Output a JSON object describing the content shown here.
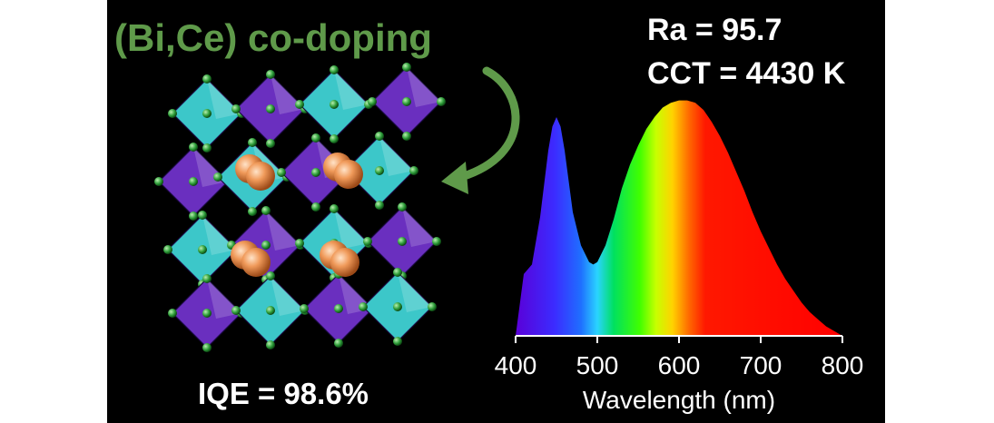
{
  "labels": {
    "title": "(Bi,Ce) co-doping",
    "ra": "Ra = 95.7",
    "cct": "CCT = 4430 K",
    "iqe": "IQE = 98.6%"
  },
  "colors": {
    "title_green": "#5f9a4a",
    "octahedron_teal": "#3cc7c9",
    "octahedron_purple": "#6a2fbf",
    "sphere_orange": "#f09a5a",
    "atom_green": "#2f9e3a",
    "background": "#000000"
  },
  "crystal": {
    "name": "perovskite-crystal-structure"
  },
  "chart_data": {
    "type": "area",
    "title": "",
    "xlabel": "Wavelength (nm)",
    "ylabel": "",
    "xlim": [
      400,
      800
    ],
    "ylim": [
      0,
      1
    ],
    "xticks": [
      "400",
      "500",
      "600",
      "700",
      "800"
    ],
    "series": [
      {
        "name": "emission spectrum",
        "x": [
          400,
          410,
          420,
          430,
          440,
          445,
          450,
          455,
          460,
          470,
          480,
          490,
          495,
          500,
          510,
          520,
          530,
          540,
          550,
          560,
          570,
          580,
          590,
          600,
          610,
          620,
          630,
          640,
          650,
          660,
          670,
          680,
          690,
          700,
          710,
          720,
          730,
          740,
          750,
          760,
          770,
          780,
          790,
          800
        ],
        "values": [
          0.0,
          0.26,
          0.3,
          0.5,
          0.78,
          0.88,
          0.92,
          0.88,
          0.78,
          0.52,
          0.38,
          0.31,
          0.3,
          0.31,
          0.38,
          0.49,
          0.62,
          0.72,
          0.8,
          0.87,
          0.92,
          0.96,
          0.98,
          0.99,
          0.99,
          0.98,
          0.95,
          0.9,
          0.84,
          0.77,
          0.69,
          0.61,
          0.52,
          0.44,
          0.37,
          0.3,
          0.24,
          0.19,
          0.14,
          0.1,
          0.07,
          0.04,
          0.02,
          0.0
        ]
      }
    ]
  }
}
